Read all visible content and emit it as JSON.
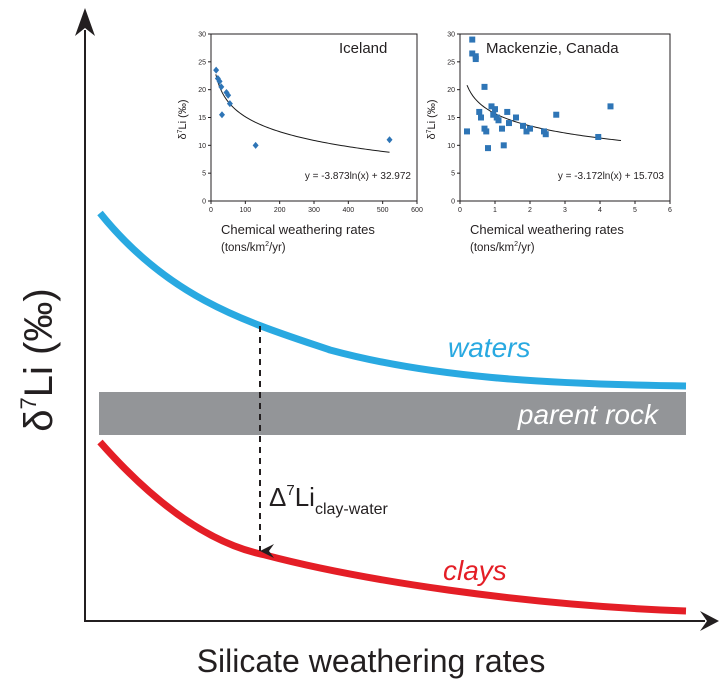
{
  "colors": {
    "waters": "#29a9e1",
    "clays": "#e41e26",
    "parent_rock": "#939598",
    "axis": "#231f20",
    "marker": "#2e75b6"
  },
  "main": {
    "ylabel_main": "δ",
    "ylabel_sup": "7",
    "ylabel_rest": "Li (‰)",
    "xlabel": "Silicate weathering rates",
    "waters_label": "waters",
    "clays_label": "clays",
    "parent_rock_label": "parent rock",
    "delta_main": "Δ",
    "delta_sup": "7",
    "delta_li": "Li",
    "delta_sub": "clay-water"
  },
  "chart_data": [
    {
      "type": "scatter",
      "title": "Iceland",
      "ylabel": "δ7Li (‰)",
      "xlabel": "Chemical weathering rates",
      "xlabel_units": "(tons/km²/yr)",
      "ylabel_main": "δ",
      "ylabel_sup": "7",
      "ylabel_rest": "Li (‰)",
      "unit_pre": "(tons/km",
      "unit_sup": "2",
      "unit_post": "/yr)",
      "xlim": [
        0,
        600
      ],
      "ylim": [
        0,
        30
      ],
      "xticks": [
        "0",
        "100",
        "200",
        "300",
        "400",
        "500",
        "600"
      ],
      "yticks": [
        "0",
        "5",
        "10",
        "15",
        "20",
        "25",
        "30"
      ],
      "equation": "y = -3.873ln(x) + 32.972",
      "fit": {
        "a": -3.873,
        "b": 32.972,
        "xrange": [
          14,
          520
        ]
      },
      "marker": "diamond",
      "points": [
        [
          15,
          23.5
        ],
        [
          20,
          22
        ],
        [
          25,
          21.5
        ],
        [
          30,
          20.5
        ],
        [
          32,
          15.5
        ],
        [
          45,
          19.5
        ],
        [
          50,
          19
        ],
        [
          55,
          17.5
        ],
        [
          130,
          10
        ],
        [
          520,
          11
        ]
      ]
    },
    {
      "type": "scatter",
      "title": "Mackenzie, Canada",
      "ylabel": "δ7Li (‰)",
      "xlabel": "Chemical weathering rates",
      "xlabel_units": "(tons/km²/yr)",
      "ylabel_main": "δ",
      "ylabel_sup": "7",
      "ylabel_rest": "Li (‰)",
      "unit_pre": "(tons/km",
      "unit_sup": "2",
      "unit_post": "/yr)",
      "xlim": [
        0,
        6
      ],
      "ylim": [
        0,
        30
      ],
      "xticks": [
        "0",
        "1",
        "2",
        "3",
        "4",
        "5",
        "6"
      ],
      "yticks": [
        "0",
        "5",
        "10",
        "15",
        "20",
        "25",
        "30"
      ],
      "equation": "y = -3.172ln(x) + 15.703",
      "fit": {
        "a": -3.172,
        "b": 15.703,
        "xrange": [
          0.2,
          4.6
        ]
      },
      "marker": "square",
      "points": [
        [
          0.2,
          12.5
        ],
        [
          0.35,
          29
        ],
        [
          0.35,
          26.5
        ],
        [
          0.45,
          26
        ],
        [
          0.45,
          25.5
        ],
        [
          0.55,
          16
        ],
        [
          0.6,
          15
        ],
        [
          0.7,
          20.5
        ],
        [
          0.7,
          13
        ],
        [
          0.75,
          12.5
        ],
        [
          0.8,
          9.5
        ],
        [
          0.9,
          17
        ],
        [
          0.95,
          15.5
        ],
        [
          1.0,
          16.5
        ],
        [
          1.05,
          15
        ],
        [
          1.1,
          14.5
        ],
        [
          1.2,
          13
        ],
        [
          1.25,
          10
        ],
        [
          1.35,
          16
        ],
        [
          1.4,
          14
        ],
        [
          1.6,
          15
        ],
        [
          1.8,
          13.5
        ],
        [
          1.9,
          12.5
        ],
        [
          2.0,
          13
        ],
        [
          2.4,
          12.5
        ],
        [
          2.45,
          12
        ],
        [
          2.75,
          15.5
        ],
        [
          3.95,
          11.5
        ],
        [
          4.3,
          17
        ]
      ]
    }
  ]
}
